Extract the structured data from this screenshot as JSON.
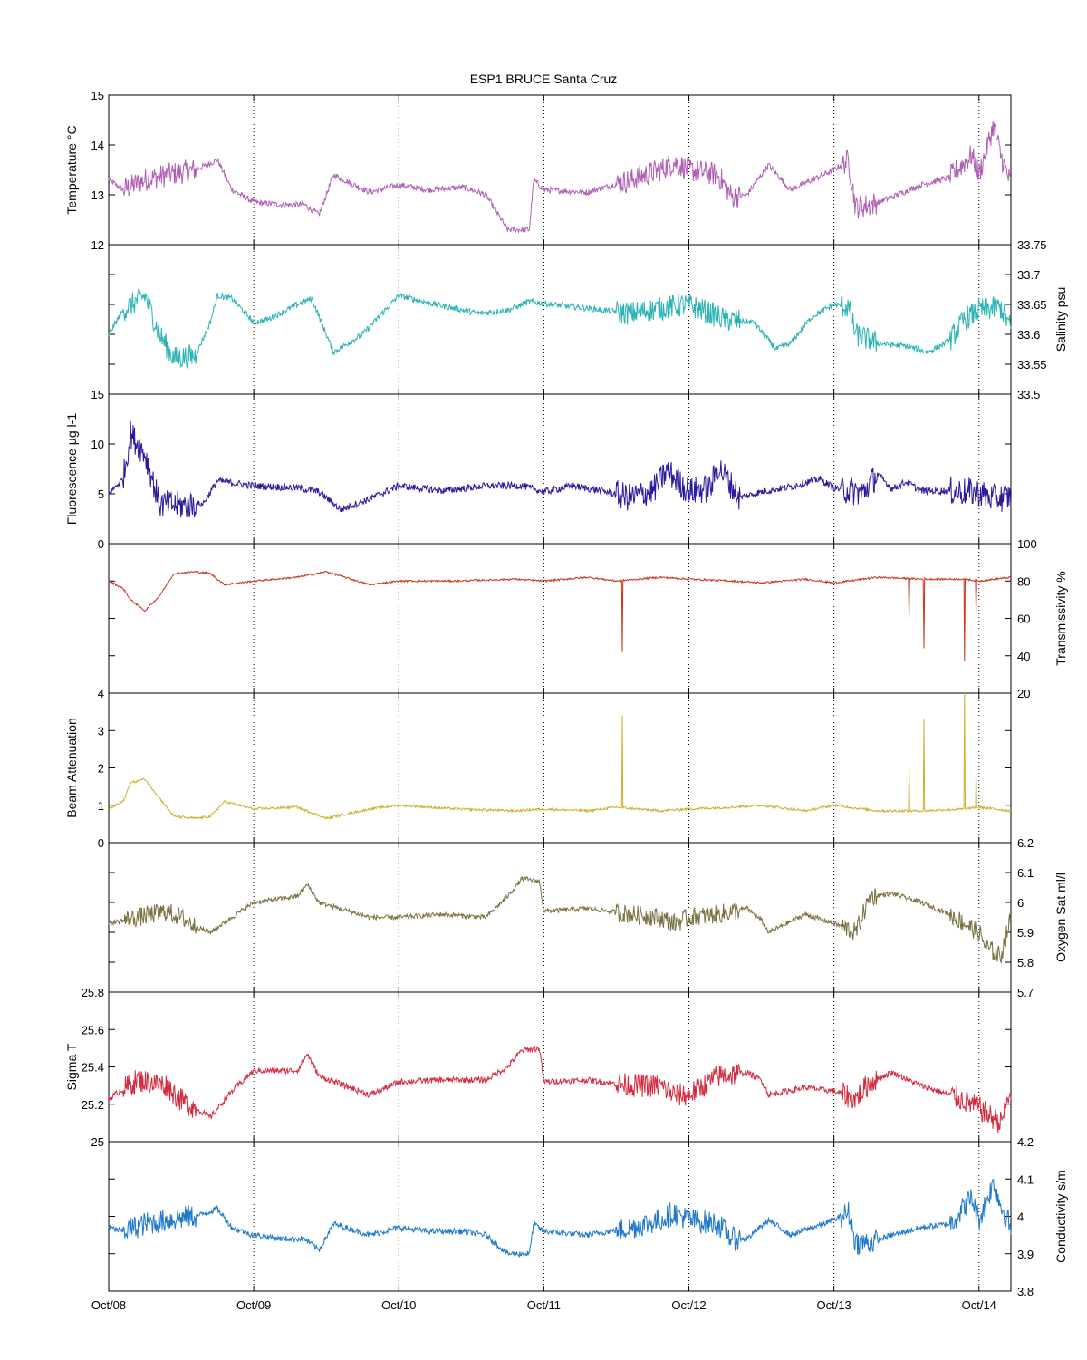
{
  "chart_data": {
    "type": "line",
    "title": "ESP1 BRUCE Santa Cruz",
    "x_ticks": [
      "Oct/08",
      "Oct/09",
      "Oct/10",
      "Oct/11",
      "Oct/12",
      "Oct/13",
      "Oct/14"
    ],
    "x_range": [
      "Oct/08",
      "Oct/14 ~05:00"
    ],
    "grid": "vertical dotted lines at each day",
    "panels": [
      {
        "name": "temperature",
        "ylabel": "Temperature °C",
        "axis": "left",
        "ylim": [
          12,
          15
        ],
        "yticks": [
          "12",
          "13",
          "14",
          "15"
        ],
        "color": "#b05fb5",
        "x": [
          0,
          0.1,
          0.25,
          0.4,
          0.6,
          0.75,
          0.85,
          1.0,
          1.2,
          1.35,
          1.45,
          1.55,
          1.8,
          2.0,
          2.2,
          2.45,
          2.6,
          2.75,
          2.9,
          2.93,
          3.0,
          3.3,
          3.6,
          3.8,
          3.9,
          4.0,
          4.2,
          4.3,
          4.4,
          4.55,
          4.7,
          4.85,
          5.0,
          5.1,
          5.15,
          5.25,
          5.4,
          5.6,
          5.8,
          5.95,
          6.0,
          6.1,
          6.15,
          6.22
        ],
        "y": [
          13.3,
          13.1,
          13.3,
          13.4,
          13.5,
          13.7,
          13.1,
          12.85,
          12.8,
          12.8,
          12.6,
          13.4,
          13.05,
          13.2,
          13.1,
          13.15,
          13.0,
          12.3,
          12.3,
          13.3,
          13.1,
          13.05,
          13.3,
          13.5,
          13.65,
          13.5,
          13.4,
          12.95,
          13.0,
          13.6,
          13.1,
          13.3,
          13.5,
          13.7,
          12.75,
          12.8,
          12.95,
          13.2,
          13.35,
          13.8,
          13.4,
          14.4,
          13.8,
          13.2
        ]
      },
      {
        "name": "salinity",
        "ylabel": "Salinity psu",
        "axis": "right",
        "ylim": [
          33.5,
          33.75
        ],
        "yticks": [
          "33.5",
          "33.55",
          "33.6",
          "33.65",
          "33.7",
          "33.75"
        ],
        "color": "#2ab3b3",
        "x": [
          0,
          0.1,
          0.25,
          0.35,
          0.45,
          0.6,
          0.7,
          0.75,
          0.85,
          1.0,
          1.1,
          1.3,
          1.4,
          1.55,
          1.75,
          2.0,
          2.25,
          2.55,
          2.75,
          2.9,
          3.05,
          3.25,
          3.6,
          3.85,
          4.0,
          4.25,
          4.45,
          4.6,
          4.7,
          4.85,
          5.0,
          5.1,
          5.15,
          5.3,
          5.5,
          5.65,
          5.8,
          5.9,
          6.0,
          6.15,
          6.22
        ],
        "y": [
          33.6,
          33.64,
          33.665,
          33.6,
          33.56,
          33.565,
          33.62,
          33.665,
          33.66,
          33.62,
          33.625,
          33.65,
          33.66,
          33.57,
          33.6,
          33.665,
          33.65,
          33.635,
          33.64,
          33.655,
          33.65,
          33.645,
          33.635,
          33.645,
          33.65,
          33.625,
          33.62,
          33.575,
          33.585,
          33.63,
          33.65,
          33.645,
          33.6,
          33.585,
          33.58,
          33.57,
          33.59,
          33.625,
          33.64,
          33.645,
          33.61
        ]
      },
      {
        "name": "fluorescence",
        "ylabel": "Fluorescence µg l-1",
        "axis": "left",
        "ylim": [
          0,
          15
        ],
        "yticks": [
          "0",
          "5",
          "10",
          "15"
        ],
        "color": "#2a1a9e",
        "x": [
          0,
          0.1,
          0.15,
          0.25,
          0.3,
          0.35,
          0.5,
          0.65,
          0.75,
          1.0,
          1.3,
          1.45,
          1.6,
          1.8,
          2.0,
          2.3,
          2.6,
          2.85,
          3.0,
          3.2,
          3.4,
          3.6,
          3.75,
          3.85,
          4.0,
          4.15,
          4.2,
          4.35,
          4.5,
          4.7,
          4.9,
          5.0,
          5.2,
          5.3,
          5.4,
          5.5,
          5.6,
          5.8,
          6.0,
          6.1,
          6.22
        ],
        "y": [
          5,
          6.5,
          11,
          9,
          6.5,
          4,
          3.8,
          4,
          6.3,
          5.8,
          5.6,
          5.2,
          3.4,
          4.5,
          5.8,
          5.3,
          5.8,
          5.8,
          5.2,
          5.8,
          5.3,
          4.6,
          5.3,
          7.3,
          5.2,
          5.6,
          7.8,
          4.6,
          5.2,
          5.7,
          6.5,
          5.6,
          5.1,
          7,
          5.5,
          6.2,
          5.3,
          5.3,
          5.1,
          4.5,
          4.7
        ]
      },
      {
        "name": "transmissivity",
        "ylabel": "Transmissivity %",
        "axis": "right",
        "ylim": [
          20,
          100
        ],
        "yticks": [
          "20",
          "40",
          "60",
          "80",
          "100"
        ],
        "color": "#c8361e",
        "x": [
          0,
          0.1,
          0.15,
          0.25,
          0.35,
          0.45,
          0.6,
          0.7,
          0.8,
          1.0,
          1.3,
          1.5,
          1.8,
          2.0,
          2.4,
          2.8,
          3.0,
          3.3,
          3.5,
          3.8,
          4.0,
          4.3,
          4.5,
          4.8,
          5.0,
          5.3,
          5.6,
          5.9,
          6.0,
          6.22
        ],
        "y": [
          80,
          76,
          70,
          64,
          72,
          84,
          85,
          84,
          78,
          80,
          82,
          85,
          78,
          80,
          80,
          81,
          80,
          82,
          80,
          82,
          81,
          80,
          79,
          81,
          79,
          82,
          81,
          81,
          80,
          82
        ]
      },
      {
        "name": "beam_attenuation",
        "ylabel": "Beam Attenuation",
        "axis": "left",
        "ylim": [
          0,
          4
        ],
        "yticks": [
          "0",
          "1",
          "2",
          "3",
          "4"
        ],
        "color": "#cbb02e",
        "x": [
          0,
          0.1,
          0.15,
          0.25,
          0.35,
          0.45,
          0.6,
          0.7,
          0.8,
          1.0,
          1.3,
          1.5,
          1.8,
          2.0,
          2.4,
          2.8,
          3.0,
          3.3,
          3.5,
          3.8,
          4.0,
          4.3,
          4.5,
          4.8,
          5.0,
          5.3,
          5.6,
          5.9,
          6.0,
          6.22
        ],
        "y": [
          0.9,
          1.1,
          1.6,
          1.7,
          1.2,
          0.7,
          0.65,
          0.7,
          1.1,
          0.9,
          0.95,
          0.65,
          0.9,
          1.0,
          0.9,
          0.85,
          0.9,
          0.85,
          0.95,
          0.85,
          0.9,
          0.95,
          1.0,
          0.85,
          1.0,
          0.85,
          0.85,
          0.9,
          0.95,
          0.85
        ]
      },
      {
        "name": "oxygen_sat",
        "ylabel": "Oxygen Sat ml/l",
        "axis": "right",
        "ylim": [
          5.7,
          6.2
        ],
        "yticks": [
          "5.7",
          "5.8",
          "5.9",
          "6",
          "6.1",
          "6.2"
        ],
        "color": "#7a7040",
        "x": [
          0,
          0.2,
          0.4,
          0.5,
          0.6,
          0.7,
          0.85,
          1.0,
          1.3,
          1.37,
          1.45,
          1.8,
          2.0,
          2.3,
          2.6,
          2.75,
          2.85,
          2.97,
          3.0,
          3.3,
          3.6,
          3.8,
          3.9,
          4.0,
          4.2,
          4.4,
          4.5,
          4.55,
          4.8,
          5.0,
          5.15,
          5.25,
          5.4,
          5.6,
          5.8,
          5.9,
          6.0,
          6.05,
          6.15,
          6.22
        ],
        "y": [
          5.93,
          5.95,
          5.97,
          5.95,
          5.92,
          5.9,
          5.95,
          6.0,
          6.02,
          6.06,
          6.0,
          5.95,
          5.95,
          5.96,
          5.95,
          6.02,
          6.08,
          6.07,
          5.97,
          5.98,
          5.96,
          5.95,
          5.93,
          5.95,
          5.96,
          5.98,
          5.94,
          5.9,
          5.96,
          5.93,
          5.9,
          6.02,
          6.03,
          6.0,
          5.96,
          5.93,
          5.9,
          5.85,
          5.82,
          5.95
        ]
      },
      {
        "name": "sigma_t",
        "ylabel": "Sigma T",
        "axis": "left",
        "ylim": [
          25,
          25.8
        ],
        "yticks": [
          "25",
          "25.2",
          "25.4",
          "25.6",
          "25.8"
        ],
        "color": "#d42a3e",
        "x": [
          0,
          0.2,
          0.4,
          0.5,
          0.6,
          0.7,
          0.85,
          1.0,
          1.3,
          1.37,
          1.45,
          1.8,
          2.0,
          2.3,
          2.6,
          2.75,
          2.85,
          2.97,
          3.0,
          3.3,
          3.6,
          3.8,
          3.9,
          4.0,
          4.2,
          4.4,
          4.5,
          4.55,
          4.8,
          5.0,
          5.15,
          5.25,
          5.4,
          5.6,
          5.8,
          5.9,
          6.0,
          6.05,
          6.15,
          6.22
        ],
        "y": [
          25.23,
          25.33,
          25.3,
          25.22,
          25.18,
          25.13,
          25.27,
          25.38,
          25.38,
          25.47,
          25.35,
          25.25,
          25.32,
          25.33,
          25.33,
          25.4,
          25.49,
          25.5,
          25.32,
          25.33,
          25.3,
          25.3,
          25.25,
          25.25,
          25.35,
          25.37,
          25.33,
          25.25,
          25.29,
          25.27,
          25.23,
          25.32,
          25.37,
          25.3,
          25.25,
          25.22,
          25.18,
          25.15,
          25.1,
          25.27
        ]
      },
      {
        "name": "conductivity",
        "ylabel": "Conductivity s/m",
        "axis": "right",
        "ylim": [
          3.8,
          4.2
        ],
        "yticks": [
          "3.8",
          "3.9",
          "4",
          "4.1",
          "4.2"
        ],
        "color": "#1d78c9",
        "x": [
          0,
          0.1,
          0.25,
          0.4,
          0.6,
          0.75,
          0.85,
          1.0,
          1.2,
          1.35,
          1.45,
          1.55,
          1.8,
          2.0,
          2.2,
          2.45,
          2.6,
          2.75,
          2.9,
          2.93,
          3.0,
          3.3,
          3.6,
          3.8,
          3.9,
          4.0,
          4.2,
          4.3,
          4.4,
          4.55,
          4.7,
          4.85,
          5.0,
          5.1,
          5.15,
          5.25,
          5.4,
          5.6,
          5.8,
          5.95,
          6.0,
          6.1,
          6.15,
          6.22
        ],
        "y": [
          3.97,
          3.96,
          3.98,
          3.99,
          4.0,
          4.02,
          3.97,
          3.95,
          3.94,
          3.94,
          3.91,
          3.98,
          3.95,
          3.97,
          3.96,
          3.96,
          3.95,
          3.9,
          3.9,
          3.98,
          3.96,
          3.95,
          3.97,
          3.99,
          4.01,
          3.99,
          3.98,
          3.94,
          3.94,
          3.99,
          3.95,
          3.97,
          3.99,
          4.01,
          3.93,
          3.93,
          3.95,
          3.97,
          3.98,
          4.05,
          3.99,
          4.09,
          4.03,
          3.97
        ]
      }
    ]
  }
}
